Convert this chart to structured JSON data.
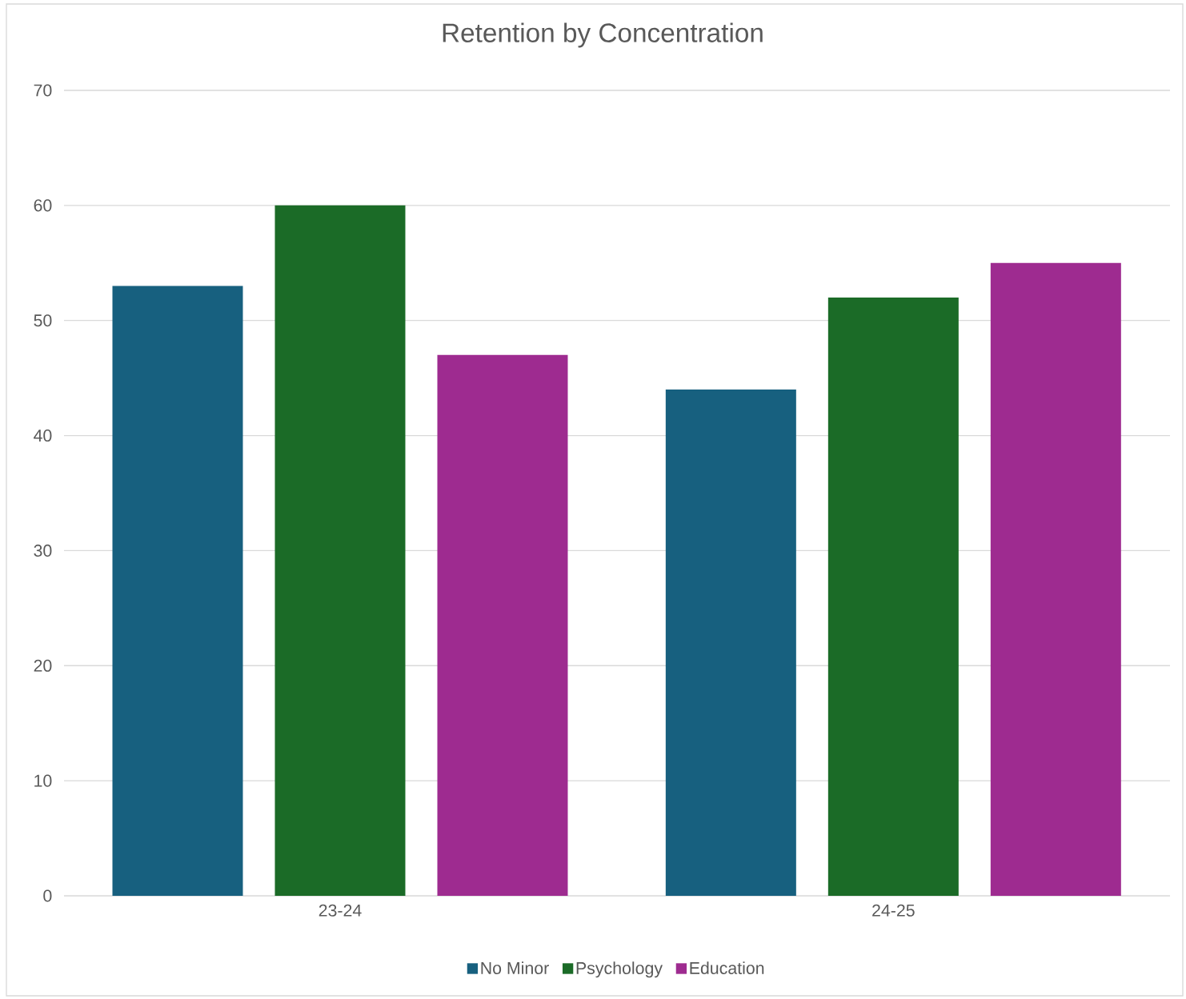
{
  "chart_data": {
    "type": "bar",
    "title": "Retention by Concentration",
    "categories": [
      "23-24",
      "24-25"
    ],
    "series": [
      {
        "name": "No Minor",
        "color": "#17607f",
        "values": [
          53,
          44
        ]
      },
      {
        "name": "Psychology",
        "color": "#1b6b27",
        "values": [
          60,
          52
        ]
      },
      {
        "name": "Education",
        "color": "#9e2b90",
        "values": [
          47,
          55
        ]
      }
    ],
    "ylim": [
      0,
      70
    ],
    "yticks": [
      0,
      10,
      20,
      30,
      40,
      50,
      60,
      70
    ],
    "grid": "y",
    "legend": "bottom"
  }
}
